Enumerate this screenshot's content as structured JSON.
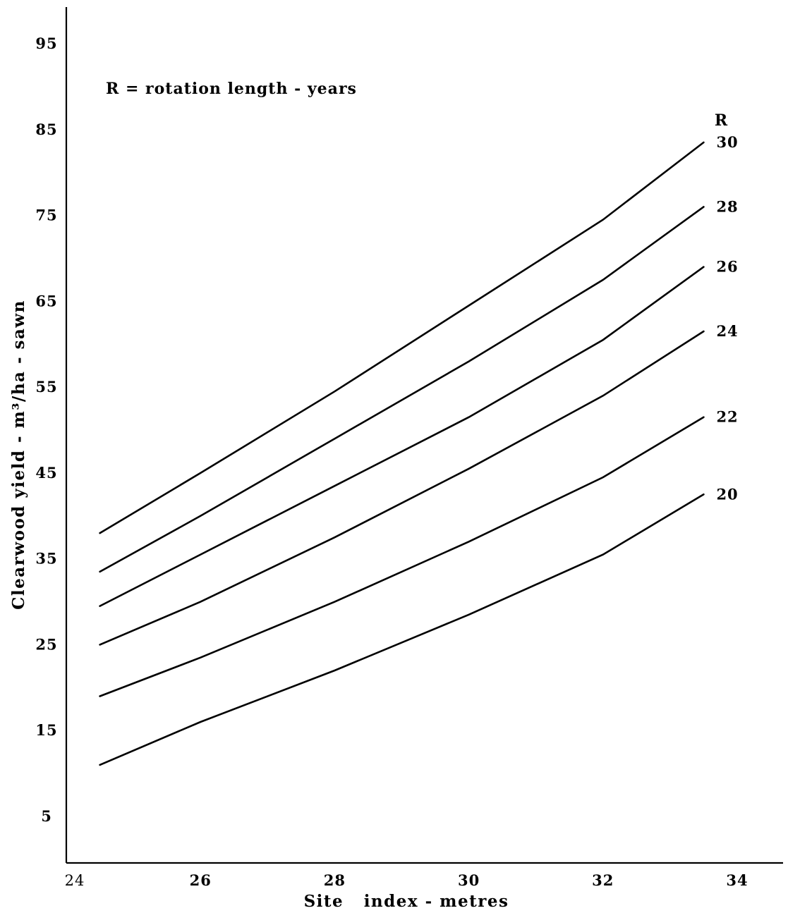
{
  "chart_data": {
    "type": "line",
    "title": "",
    "annotation": "R = rotation length - years",
    "xlabel": "Site   index - metres",
    "ylabel": "Clearwood yield - m³/ha - sawn",
    "xlim": [
      24,
      34.5
    ],
    "ylim": [
      0,
      100
    ],
    "x_ticks": [
      24,
      26,
      28,
      30,
      32,
      34
    ],
    "x_tick_labels": [
      "24",
      "26",
      "28",
      "30",
      "32",
      "34"
    ],
    "y_ticks": [
      5,
      15,
      25,
      35,
      45,
      55,
      65,
      75,
      85,
      95
    ],
    "y_tick_labels": [
      "5",
      "15",
      "25",
      "35",
      "45",
      "55",
      "65",
      "75",
      "85",
      "95"
    ],
    "grid": false,
    "legend_title": "R",
    "legend_placement": "right, at line ends",
    "series": [
      {
        "name": "30",
        "x": [
          24.5,
          26,
          28,
          30,
          32,
          33.5
        ],
        "values": [
          38,
          45,
          54.5,
          64.5,
          74.5,
          83.5
        ]
      },
      {
        "name": "28",
        "x": [
          24.5,
          26,
          28,
          30,
          32,
          33.5
        ],
        "values": [
          33.5,
          40,
          49,
          58,
          67.5,
          76
        ]
      },
      {
        "name": "26",
        "x": [
          24.5,
          26,
          28,
          30,
          32,
          33.5
        ],
        "values": [
          29.5,
          35.5,
          43.5,
          51.5,
          60.5,
          69
        ]
      },
      {
        "name": "24",
        "x": [
          24.5,
          26,
          28,
          30,
          32,
          33.5
        ],
        "values": [
          25,
          30,
          37.5,
          45.5,
          54,
          61.5
        ]
      },
      {
        "name": "22",
        "x": [
          24.5,
          26,
          28,
          30,
          32,
          33.5
        ],
        "values": [
          19,
          23.5,
          30,
          37,
          44.5,
          51.5
        ]
      },
      {
        "name": "20",
        "x": [
          24.5,
          26,
          28,
          30,
          32,
          33.5
        ],
        "values": [
          11,
          16,
          22,
          28.5,
          35.5,
          42.5
        ]
      }
    ]
  }
}
